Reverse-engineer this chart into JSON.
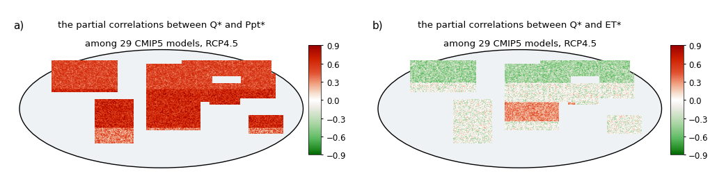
{
  "panel_a_title_line1": "the partial correlations between Q* and Ppt*",
  "panel_a_title_line2": "among 29 CMIP5 models, RCP4.5",
  "panel_b_title_line1": "the partial correlations between Q* and ET*",
  "panel_b_title_line2": "among 29 CMIP5 models, RCP4.5",
  "panel_a_label": "a)",
  "panel_b_label": "b)",
  "colorbar_ticks": [
    0.9,
    0.6,
    0.3,
    0,
    -0.3,
    -0.6,
    -0.9
  ],
  "vmin": -0.9,
  "vmax": 0.9,
  "cmap_colors": [
    [
      0.0,
      "#006400"
    ],
    [
      0.05,
      "#228B22"
    ],
    [
      0.15,
      "#5DBB63"
    ],
    [
      0.28,
      "#A8D5A2"
    ],
    [
      0.44,
      "#F0EDE8"
    ],
    [
      0.5,
      "#FFFFFF"
    ],
    [
      0.56,
      "#F5E0D0"
    ],
    [
      0.65,
      "#F0A080"
    ],
    [
      0.75,
      "#E05030"
    ],
    [
      0.88,
      "#CC2000"
    ],
    [
      1.0,
      "#990000"
    ]
  ],
  "bg_color": "#FFFFFF",
  "title_fontsize": 9.5,
  "label_fontsize": 11,
  "tick_fontsize": 8.5,
  "figure_width": 10.3,
  "figure_height": 2.55,
  "dpi": 100
}
